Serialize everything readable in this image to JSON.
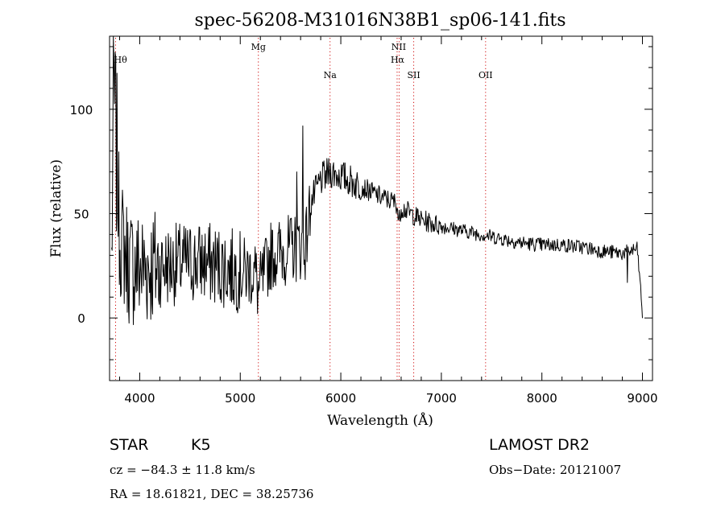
{
  "chart_data": {
    "type": "line",
    "title": "spec-56208-M31016N38B1_sp06-141.fits",
    "xlabel": "Wavelength (Å)",
    "ylabel": "Flux (relative)",
    "xlim": [
      3700,
      9100
    ],
    "ylim": [
      -30,
      135
    ],
    "xticks": [
      4000,
      5000,
      6000,
      7000,
      8000,
      9000
    ],
    "yticks": [
      0,
      50,
      100
    ],
    "grid": false,
    "line_color": "#000000",
    "marker_color": "#d01010",
    "spectral_lines": [
      {
        "label": "Hθ",
        "x": 3760
      },
      {
        "label": "Mg",
        "x": 5180
      },
      {
        "label": "Na",
        "x": 5893
      },
      {
        "label": "NII",
        "x": 6560
      },
      {
        "label": "Hα",
        "x": 6580
      },
      {
        "label": "SII",
        "x": 6725
      },
      {
        "label": "OII",
        "x": 7440
      }
    ],
    "series": [
      {
        "envelope": [
          {
            "x": 3720,
            "y": 25
          },
          {
            "x": 3740,
            "y": 110
          },
          {
            "x": 3760,
            "y": 90
          },
          {
            "x": 3800,
            "y": 40
          },
          {
            "x": 3900,
            "y": 25
          },
          {
            "x": 4000,
            "y": 24
          },
          {
            "x": 4200,
            "y": 25
          },
          {
            "x": 4400,
            "y": 26
          },
          {
            "x": 4600,
            "y": 27
          },
          {
            "x": 4800,
            "y": 25
          },
          {
            "x": 5000,
            "y": 22
          },
          {
            "x": 5150,
            "y": 22
          },
          {
            "x": 5180,
            "y": 12
          },
          {
            "x": 5300,
            "y": 30
          },
          {
            "x": 5500,
            "y": 33
          },
          {
            "x": 5650,
            "y": 35
          },
          {
            "x": 5700,
            "y": 55
          },
          {
            "x": 5800,
            "y": 66
          },
          {
            "x": 5900,
            "y": 70
          },
          {
            "x": 6000,
            "y": 68
          },
          {
            "x": 6200,
            "y": 63
          },
          {
            "x": 6400,
            "y": 58
          },
          {
            "x": 6560,
            "y": 55
          },
          {
            "x": 6575,
            "y": 45
          },
          {
            "x": 6600,
            "y": 53
          },
          {
            "x": 6800,
            "y": 47
          },
          {
            "x": 7000,
            "y": 44
          },
          {
            "x": 7200,
            "y": 42
          },
          {
            "x": 7400,
            "y": 40
          },
          {
            "x": 7600,
            "y": 38
          },
          {
            "x": 7800,
            "y": 36
          },
          {
            "x": 8000,
            "y": 35
          },
          {
            "x": 8200,
            "y": 35
          },
          {
            "x": 8400,
            "y": 34
          },
          {
            "x": 8600,
            "y": 32
          },
          {
            "x": 8800,
            "y": 31
          },
          {
            "x": 8950,
            "y": 33
          },
          {
            "x": 9000,
            "y": 2
          }
        ]
      }
    ]
  },
  "info": {
    "obj_class": "STAR",
    "subclass": "K5",
    "survey": "LAMOST DR2",
    "cz": "cz = −84.3 ± 11.8 km/s",
    "obs_date": "Obs−Date: 20121007",
    "radec": "RA =  18.61821, DEC =  38.25736"
  }
}
